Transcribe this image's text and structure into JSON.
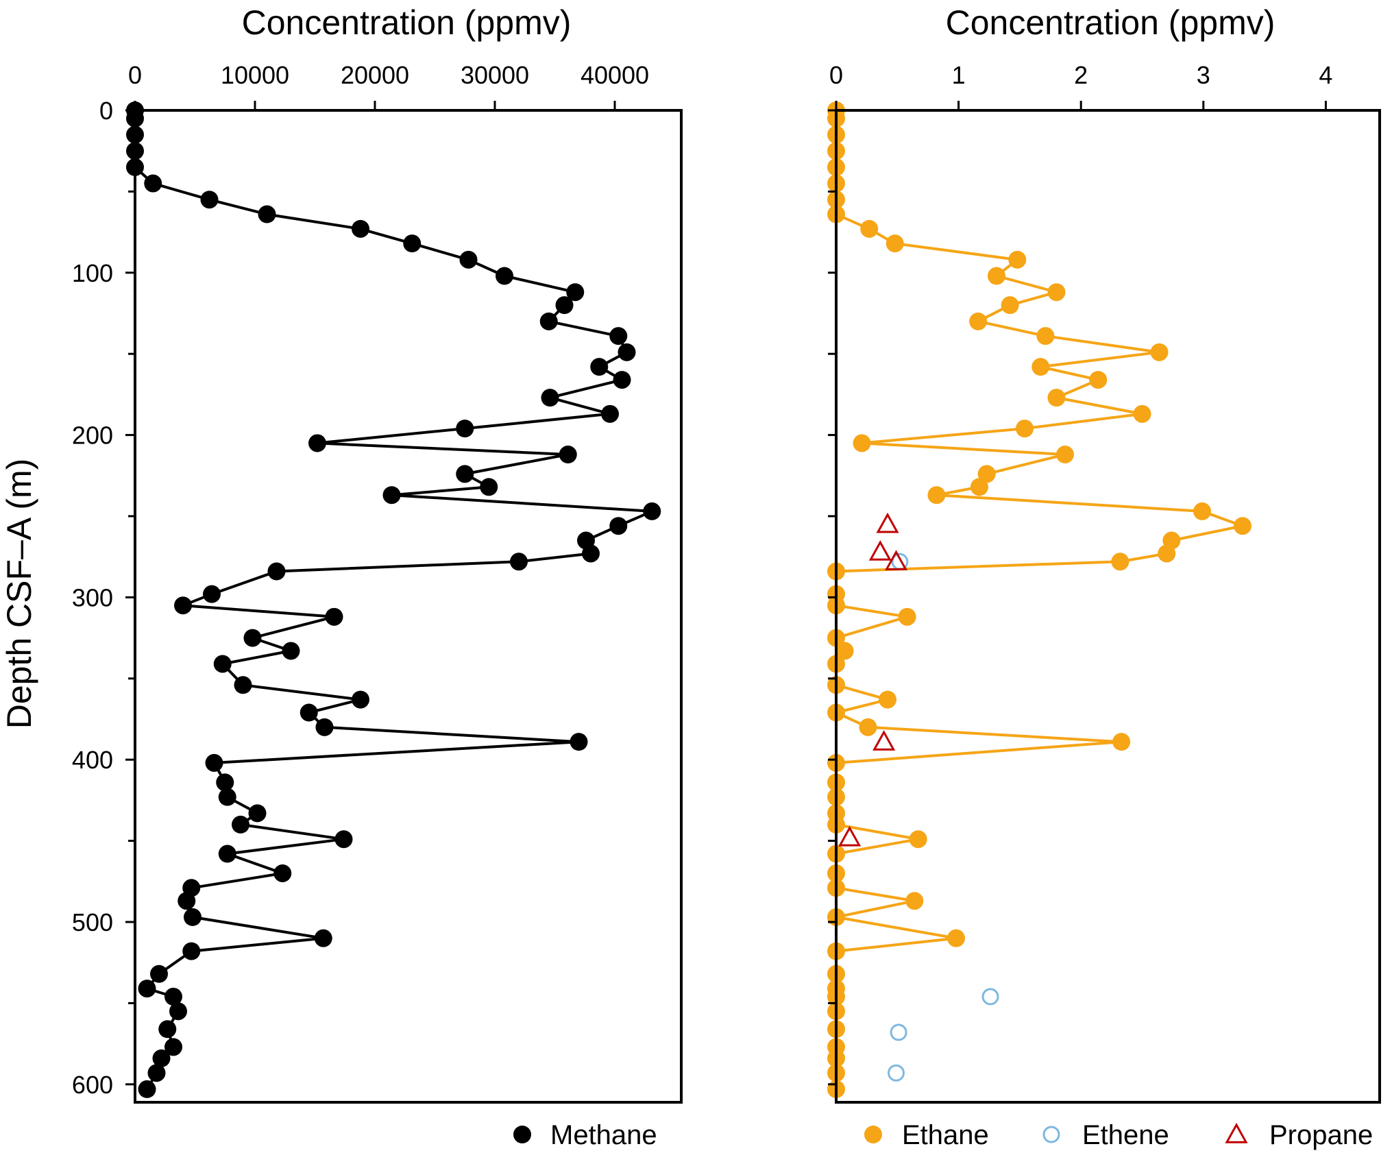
{
  "chart_data": [
    {
      "type": "scatter",
      "xlabel": "Concentration (ppmv)",
      "ylabel": "Depth CSF–A (m)",
      "xlim": [
        0,
        45000
      ],
      "ylim": [
        610,
        0
      ],
      "x_ticks": [
        "0",
        "10000",
        "20000",
        "30000",
        "40000"
      ],
      "y_ticks": [
        "0",
        "100",
        "200",
        "300",
        "400",
        "500",
        "600"
      ],
      "grid": false,
      "legend_position": "bottom-right",
      "series": [
        {
          "name": "Methane",
          "color": "#000000",
          "marker": "filled-circle",
          "connected": true,
          "points": [
            [
              0,
              0
            ],
            [
              0,
              5
            ],
            [
              0,
              15
            ],
            [
              0,
              25
            ],
            [
              0,
              35
            ],
            [
              1500,
              45
            ],
            [
              6200,
              55
            ],
            [
              11000,
              64
            ],
            [
              18800,
              73
            ],
            [
              23100,
              82
            ],
            [
              27800,
              92
            ],
            [
              30800,
              102
            ],
            [
              36700,
              112
            ],
            [
              35800,
              120
            ],
            [
              34500,
              130
            ],
            [
              40300,
              139
            ],
            [
              41000,
              149
            ],
            [
              38700,
              158
            ],
            [
              40600,
              166
            ],
            [
              34600,
              177
            ],
            [
              39600,
              187
            ],
            [
              27500,
              196
            ],
            [
              15200,
              205
            ],
            [
              36100,
              212
            ],
            [
              27500,
              224
            ],
            [
              29500,
              232
            ],
            [
              21400,
              237
            ],
            [
              43100,
              247
            ],
            [
              40300,
              256
            ],
            [
              37600,
              265
            ],
            [
              38000,
              273
            ],
            [
              32000,
              278
            ],
            [
              11800,
              284
            ],
            [
              6400,
              298
            ],
            [
              4000,
              305
            ],
            [
              16600,
              312
            ],
            [
              9800,
              325
            ],
            [
              13000,
              333
            ],
            [
              7300,
              341
            ],
            [
              9000,
              354
            ],
            [
              18800,
              363
            ],
            [
              14500,
              371
            ],
            [
              15800,
              380
            ],
            [
              37000,
              389
            ],
            [
              6600,
              402
            ],
            [
              7500,
              414
            ],
            [
              7700,
              423
            ],
            [
              10200,
              433
            ],
            [
              8800,
              440
            ],
            [
              17400,
              449
            ],
            [
              7700,
              458
            ],
            [
              12300,
              470
            ],
            [
              4700,
              479
            ],
            [
              4300,
              487
            ],
            [
              4800,
              497
            ],
            [
              15700,
              510
            ],
            [
              4700,
              518
            ],
            [
              2000,
              532
            ],
            [
              1000,
              541
            ],
            [
              3200,
              546
            ],
            [
              3600,
              555
            ],
            [
              2700,
              566
            ],
            [
              3200,
              577
            ],
            [
              2200,
              584
            ],
            [
              1800,
              593
            ],
            [
              1000,
              603
            ]
          ]
        }
      ]
    },
    {
      "type": "scatter",
      "xlabel": "Concentration (ppmv)",
      "ylabel": "",
      "xlim": [
        0,
        4.5
      ],
      "ylim": [
        610,
        0
      ],
      "x_ticks": [
        "0",
        "1",
        "2",
        "3",
        "4"
      ],
      "grid": false,
      "legend_position": "bottom",
      "series": [
        {
          "name": "Ethane",
          "color": "#F5A516",
          "marker": "filled-circle",
          "connected": true,
          "points": [
            [
              0,
              0
            ],
            [
              0,
              5
            ],
            [
              0,
              15
            ],
            [
              0,
              25
            ],
            [
              0,
              35
            ],
            [
              0,
              45
            ],
            [
              0,
              55
            ],
            [
              0,
              64
            ],
            [
              0.27,
              73
            ],
            [
              0.48,
              82
            ],
            [
              1.48,
              92
            ],
            [
              1.31,
              102
            ],
            [
              1.8,
              112
            ],
            [
              1.42,
              120
            ],
            [
              1.16,
              130
            ],
            [
              1.71,
              139
            ],
            [
              2.64,
              149
            ],
            [
              1.67,
              158
            ],
            [
              2.14,
              166
            ],
            [
              1.8,
              177
            ],
            [
              2.5,
              187
            ],
            [
              1.54,
              196
            ],
            [
              0.21,
              205
            ],
            [
              1.87,
              212
            ],
            [
              1.23,
              224
            ],
            [
              1.17,
              232
            ],
            [
              0.82,
              237
            ],
            [
              2.99,
              247
            ],
            [
              3.32,
              256
            ],
            [
              2.74,
              265
            ],
            [
              2.7,
              273
            ],
            [
              2.32,
              278
            ],
            [
              0,
              284
            ],
            [
              0,
              298
            ],
            [
              0,
              305
            ],
            [
              0.58,
              312
            ],
            [
              0,
              325
            ],
            [
              0.07,
              333
            ],
            [
              0,
              341
            ],
            [
              0,
              354
            ],
            [
              0.42,
              363
            ],
            [
              0,
              371
            ],
            [
              0.26,
              380
            ],
            [
              2.33,
              389
            ],
            [
              0,
              402
            ],
            [
              0,
              414
            ],
            [
              0,
              423
            ],
            [
              0,
              433
            ],
            [
              0,
              440
            ],
            [
              0.67,
              449
            ],
            [
              0,
              458
            ],
            [
              0,
              470
            ],
            [
              0,
              479
            ],
            [
              0.64,
              487
            ],
            [
              0,
              497
            ],
            [
              0.98,
              510
            ],
            [
              0,
              518
            ],
            [
              0,
              532
            ],
            [
              0,
              541
            ],
            [
              0,
              546
            ],
            [
              0,
              555
            ],
            [
              0,
              566
            ],
            [
              0,
              577
            ],
            [
              0,
              584
            ],
            [
              0,
              593
            ],
            [
              0,
              603
            ]
          ]
        },
        {
          "name": "Ethene",
          "color": "#7EB8E0",
          "marker": "open-circle",
          "connected": false,
          "points": [
            [
              0.52,
              278
            ],
            [
              1.26,
              546
            ],
            [
              0.51,
              568
            ],
            [
              0.49,
              593
            ]
          ]
        },
        {
          "name": "Propane",
          "color": "#C00000",
          "marker": "open-triangle",
          "connected": false,
          "points": [
            [
              0.42,
              255
            ],
            [
              0.36,
              272
            ],
            [
              0.49,
              278
            ],
            [
              0.39,
              389
            ],
            [
              0.11,
              448
            ]
          ]
        }
      ]
    }
  ]
}
